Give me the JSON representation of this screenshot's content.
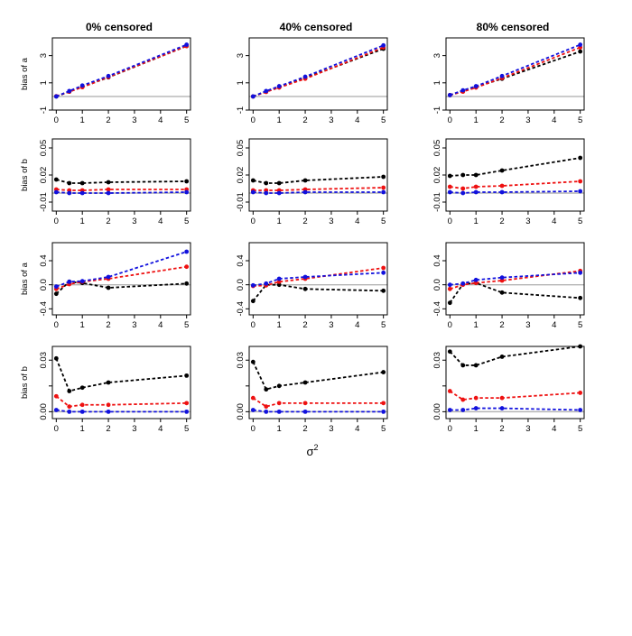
{
  "figure": {
    "column_titles": [
      "0% censored",
      "40% censored",
      "80% censored"
    ],
    "xlabel": "σ",
    "xlabel_sup": "2"
  },
  "colors": {
    "black_series": "#000000",
    "red_series": "#ee1111",
    "blue_series": "#1111dd",
    "reference_line": "#b4b4b4"
  },
  "chart_data": [
    {
      "type": "line",
      "panel_row": 1,
      "panel_col": 1,
      "title": "0% censored",
      "ylabel": "bias of a",
      "ylim": [
        -1,
        4.3
      ],
      "yticks": [
        -1,
        1,
        3
      ],
      "yticklabels": [
        "-1",
        "1",
        "3"
      ],
      "x": [
        0,
        0.5,
        1,
        2,
        5
      ],
      "xticks": [
        0,
        1,
        2,
        3,
        4,
        5
      ],
      "xlim": [
        -0.15,
        5.15
      ],
      "reference_line": 0,
      "series": [
        {
          "color": "black",
          "values": [
            0.0,
            0.35,
            0.7,
            1.4,
            3.7
          ]
        },
        {
          "color": "red",
          "values": [
            0.02,
            0.35,
            0.68,
            1.42,
            3.7
          ]
        },
        {
          "color": "blue",
          "values": [
            0.0,
            0.4,
            0.8,
            1.5,
            3.8
          ]
        }
      ]
    },
    {
      "type": "line",
      "panel_row": 1,
      "panel_col": 2,
      "title": "40% censored",
      "ylabel": "bias of a",
      "ylim": [
        -1,
        4.3
      ],
      "yticks": [
        -1,
        1,
        3
      ],
      "yticklabels": [
        "-1",
        "1",
        "3"
      ],
      "x": [
        0,
        0.5,
        1,
        2,
        5
      ],
      "xticks": [
        0,
        1,
        2,
        3,
        4,
        5
      ],
      "xlim": [
        -0.15,
        5.15
      ],
      "reference_line": 0,
      "series": [
        {
          "color": "black",
          "values": [
            0.0,
            0.35,
            0.7,
            1.35,
            3.5
          ]
        },
        {
          "color": "red",
          "values": [
            0.0,
            0.33,
            0.65,
            1.3,
            3.6
          ]
        },
        {
          "color": "blue",
          "values": [
            0.0,
            0.4,
            0.75,
            1.45,
            3.75
          ]
        }
      ]
    },
    {
      "type": "line",
      "panel_row": 1,
      "panel_col": 3,
      "title": "80% censored",
      "ylabel": "bias of a",
      "ylim": [
        -1,
        4.3
      ],
      "yticks": [
        -1,
        1,
        3
      ],
      "yticklabels": [
        "-1",
        "1",
        "3"
      ],
      "x": [
        0,
        0.5,
        1,
        2,
        5
      ],
      "xticks": [
        0,
        1,
        2,
        3,
        4,
        5
      ],
      "xlim": [
        -0.15,
        5.15
      ],
      "reference_line": 0,
      "series": [
        {
          "color": "black",
          "values": [
            0.1,
            0.4,
            0.7,
            1.3,
            3.3
          ]
        },
        {
          "color": "red",
          "values": [
            0.1,
            0.35,
            0.65,
            1.35,
            3.6
          ]
        },
        {
          "color": "blue",
          "values": [
            0.1,
            0.45,
            0.75,
            1.5,
            3.8
          ]
        }
      ]
    },
    {
      "type": "line",
      "panel_row": 2,
      "panel_col": 1,
      "ylabel": "bias of b",
      "ylim": [
        -0.02,
        0.06
      ],
      "yticks": [
        -0.01,
        0.02,
        0.05
      ],
      "yticklabels": [
        "-0.01",
        "0.02",
        "0.05"
      ],
      "x": [
        0,
        0.5,
        1,
        2,
        5
      ],
      "xticks": [
        0,
        1,
        2,
        3,
        4,
        5
      ],
      "xlim": [
        -0.15,
        5.15
      ],
      "reference_line": 0,
      "series": [
        {
          "color": "black",
          "values": [
            0.015,
            0.011,
            0.011,
            0.012,
            0.013
          ]
        },
        {
          "color": "red",
          "values": [
            0.004,
            0.003,
            0.003,
            0.004,
            0.004
          ]
        },
        {
          "color": "blue",
          "values": [
            0.001,
            0.0,
            0.0,
            0.0,
            0.001
          ]
        }
      ]
    },
    {
      "type": "line",
      "panel_row": 2,
      "panel_col": 2,
      "ylabel": "bias of b",
      "ylim": [
        -0.02,
        0.06
      ],
      "yticks": [
        -0.01,
        0.02,
        0.05
      ],
      "yticklabels": [
        "-0.01",
        "0.02",
        "0.05"
      ],
      "x": [
        0,
        0.5,
        1,
        2,
        5
      ],
      "xticks": [
        0,
        1,
        2,
        3,
        4,
        5
      ],
      "xlim": [
        -0.15,
        5.15
      ],
      "reference_line": 0,
      "series": [
        {
          "color": "black",
          "values": [
            0.014,
            0.011,
            0.011,
            0.014,
            0.018
          ]
        },
        {
          "color": "red",
          "values": [
            0.003,
            0.003,
            0.003,
            0.004,
            0.006
          ]
        },
        {
          "color": "blue",
          "values": [
            0.001,
            0.0,
            0.0,
            0.001,
            0.001
          ]
        }
      ]
    },
    {
      "type": "line",
      "panel_row": 2,
      "panel_col": 3,
      "ylabel": "bias of b",
      "ylim": [
        -0.02,
        0.06
      ],
      "yticks": [
        -0.01,
        0.02,
        0.05
      ],
      "yticklabels": [
        "-0.01",
        "0.02",
        "0.05"
      ],
      "x": [
        0,
        0.5,
        1,
        2,
        5
      ],
      "xticks": [
        0,
        1,
        2,
        3,
        4,
        5
      ],
      "xlim": [
        -0.15,
        5.15
      ],
      "reference_line": 0,
      "series": [
        {
          "color": "black",
          "values": [
            0.019,
            0.02,
            0.02,
            0.025,
            0.039
          ]
        },
        {
          "color": "red",
          "values": [
            0.007,
            0.005,
            0.007,
            0.008,
            0.013
          ]
        },
        {
          "color": "blue",
          "values": [
            0.001,
            0.0,
            0.001,
            0.001,
            0.002
          ]
        }
      ]
    },
    {
      "type": "line",
      "panel_row": 3,
      "panel_col": 1,
      "ylabel": "bias of a",
      "ylim": [
        -0.5,
        0.7
      ],
      "yticks": [
        -0.4,
        0.0,
        0.4
      ],
      "yticklabels": [
        "-0.4",
        "0.0",
        "0.4"
      ],
      "x": [
        0,
        0.5,
        1,
        2,
        5
      ],
      "xticks": [
        0,
        1,
        2,
        3,
        4,
        5
      ],
      "xlim": [
        -0.15,
        5.15
      ],
      "reference_line": 0,
      "series": [
        {
          "color": "black",
          "values": [
            -0.15,
            0.05,
            0.03,
            -0.05,
            0.02
          ]
        },
        {
          "color": "red",
          "values": [
            -0.07,
            0.01,
            0.05,
            0.1,
            0.3
          ]
        },
        {
          "color": "blue",
          "values": [
            -0.03,
            0.05,
            0.06,
            0.13,
            0.55
          ]
        }
      ]
    },
    {
      "type": "line",
      "panel_row": 3,
      "panel_col": 2,
      "ylabel": "bias of a",
      "ylim": [
        -0.5,
        0.7
      ],
      "yticks": [
        -0.4,
        0.0,
        0.4
      ],
      "yticklabels": [
        "-0.4",
        "0.0",
        "0.4"
      ],
      "x": [
        0,
        0.5,
        1,
        2,
        5
      ],
      "xticks": [
        0,
        1,
        2,
        3,
        4,
        5
      ],
      "xlim": [
        -0.15,
        5.15
      ],
      "reference_line": 0,
      "series": [
        {
          "color": "black",
          "values": [
            -0.27,
            0.0,
            0.0,
            -0.07,
            -0.1
          ]
        },
        {
          "color": "red",
          "values": [
            -0.02,
            -0.01,
            0.05,
            0.1,
            0.28
          ]
        },
        {
          "color": "blue",
          "values": [
            -0.01,
            0.02,
            0.1,
            0.13,
            0.2
          ]
        }
      ]
    },
    {
      "type": "line",
      "panel_row": 3,
      "panel_col": 3,
      "ylabel": "bias of a",
      "ylim": [
        -0.5,
        0.7
      ],
      "yticks": [
        -0.4,
        0.0,
        0.4
      ],
      "yticklabels": [
        "-0.4",
        "0.0",
        "0.4"
      ],
      "x": [
        0,
        0.5,
        1,
        2,
        5
      ],
      "xticks": [
        0,
        1,
        2,
        3,
        4,
        5
      ],
      "xlim": [
        -0.15,
        5.15
      ],
      "reference_line": 0,
      "series": [
        {
          "color": "black",
          "values": [
            -0.3,
            0.01,
            0.03,
            -0.13,
            -0.22
          ]
        },
        {
          "color": "red",
          "values": [
            -0.07,
            0.0,
            0.03,
            0.07,
            0.23
          ]
        },
        {
          "color": "blue",
          "values": [
            0.0,
            0.02,
            0.08,
            0.12,
            0.2
          ]
        }
      ]
    },
    {
      "type": "line",
      "panel_row": 4,
      "panel_col": 1,
      "ylabel": "bias of b",
      "ylim": [
        -0.004,
        0.038
      ],
      "yticks": [
        0.0,
        0.015,
        0.03
      ],
      "yticklabels": [
        "0.00",
        "",
        "0.03"
      ],
      "x": [
        0,
        0.5,
        1,
        2,
        5
      ],
      "xticks": [
        0,
        1,
        2,
        3,
        4,
        5
      ],
      "xlim": [
        -0.15,
        5.15
      ],
      "reference_line": 0,
      "series": [
        {
          "color": "black",
          "values": [
            0.031,
            0.012,
            0.014,
            0.017,
            0.021
          ]
        },
        {
          "color": "red",
          "values": [
            0.009,
            0.003,
            0.004,
            0.004,
            0.005
          ]
        },
        {
          "color": "blue",
          "values": [
            0.001,
            0.0,
            0.0,
            0.0,
            0.0
          ]
        }
      ]
    },
    {
      "type": "line",
      "panel_row": 4,
      "panel_col": 2,
      "ylabel": "bias of b",
      "ylim": [
        -0.004,
        0.038
      ],
      "yticks": [
        0.0,
        0.015,
        0.03
      ],
      "yticklabels": [
        "0.00",
        "",
        "0.03"
      ],
      "x": [
        0,
        0.5,
        1,
        2,
        5
      ],
      "xticks": [
        0,
        1,
        2,
        3,
        4,
        5
      ],
      "xlim": [
        -0.15,
        5.15
      ],
      "reference_line": 0,
      "series": [
        {
          "color": "black",
          "values": [
            0.029,
            0.013,
            0.015,
            0.017,
            0.023
          ]
        },
        {
          "color": "red",
          "values": [
            0.008,
            0.003,
            0.005,
            0.005,
            0.005
          ]
        },
        {
          "color": "blue",
          "values": [
            0.001,
            0.0,
            0.0,
            0.0,
            0.0
          ]
        }
      ]
    },
    {
      "type": "line",
      "panel_row": 4,
      "panel_col": 3,
      "ylabel": "bias of b",
      "ylim": [
        -0.004,
        0.038
      ],
      "yticks": [
        0.0,
        0.015,
        0.03
      ],
      "yticklabels": [
        "0.00",
        "",
        "0.03"
      ],
      "x": [
        0,
        0.5,
        1,
        2,
        5
      ],
      "xticks": [
        0,
        1,
        2,
        3,
        4,
        5
      ],
      "xlim": [
        -0.15,
        5.15
      ],
      "reference_line": 0,
      "series": [
        {
          "color": "black",
          "values": [
            0.035,
            0.027,
            0.027,
            0.032,
            0.038
          ]
        },
        {
          "color": "red",
          "values": [
            0.012,
            0.007,
            0.008,
            0.008,
            0.011
          ]
        },
        {
          "color": "blue",
          "values": [
            0.001,
            0.001,
            0.002,
            0.002,
            0.001
          ]
        }
      ]
    }
  ]
}
